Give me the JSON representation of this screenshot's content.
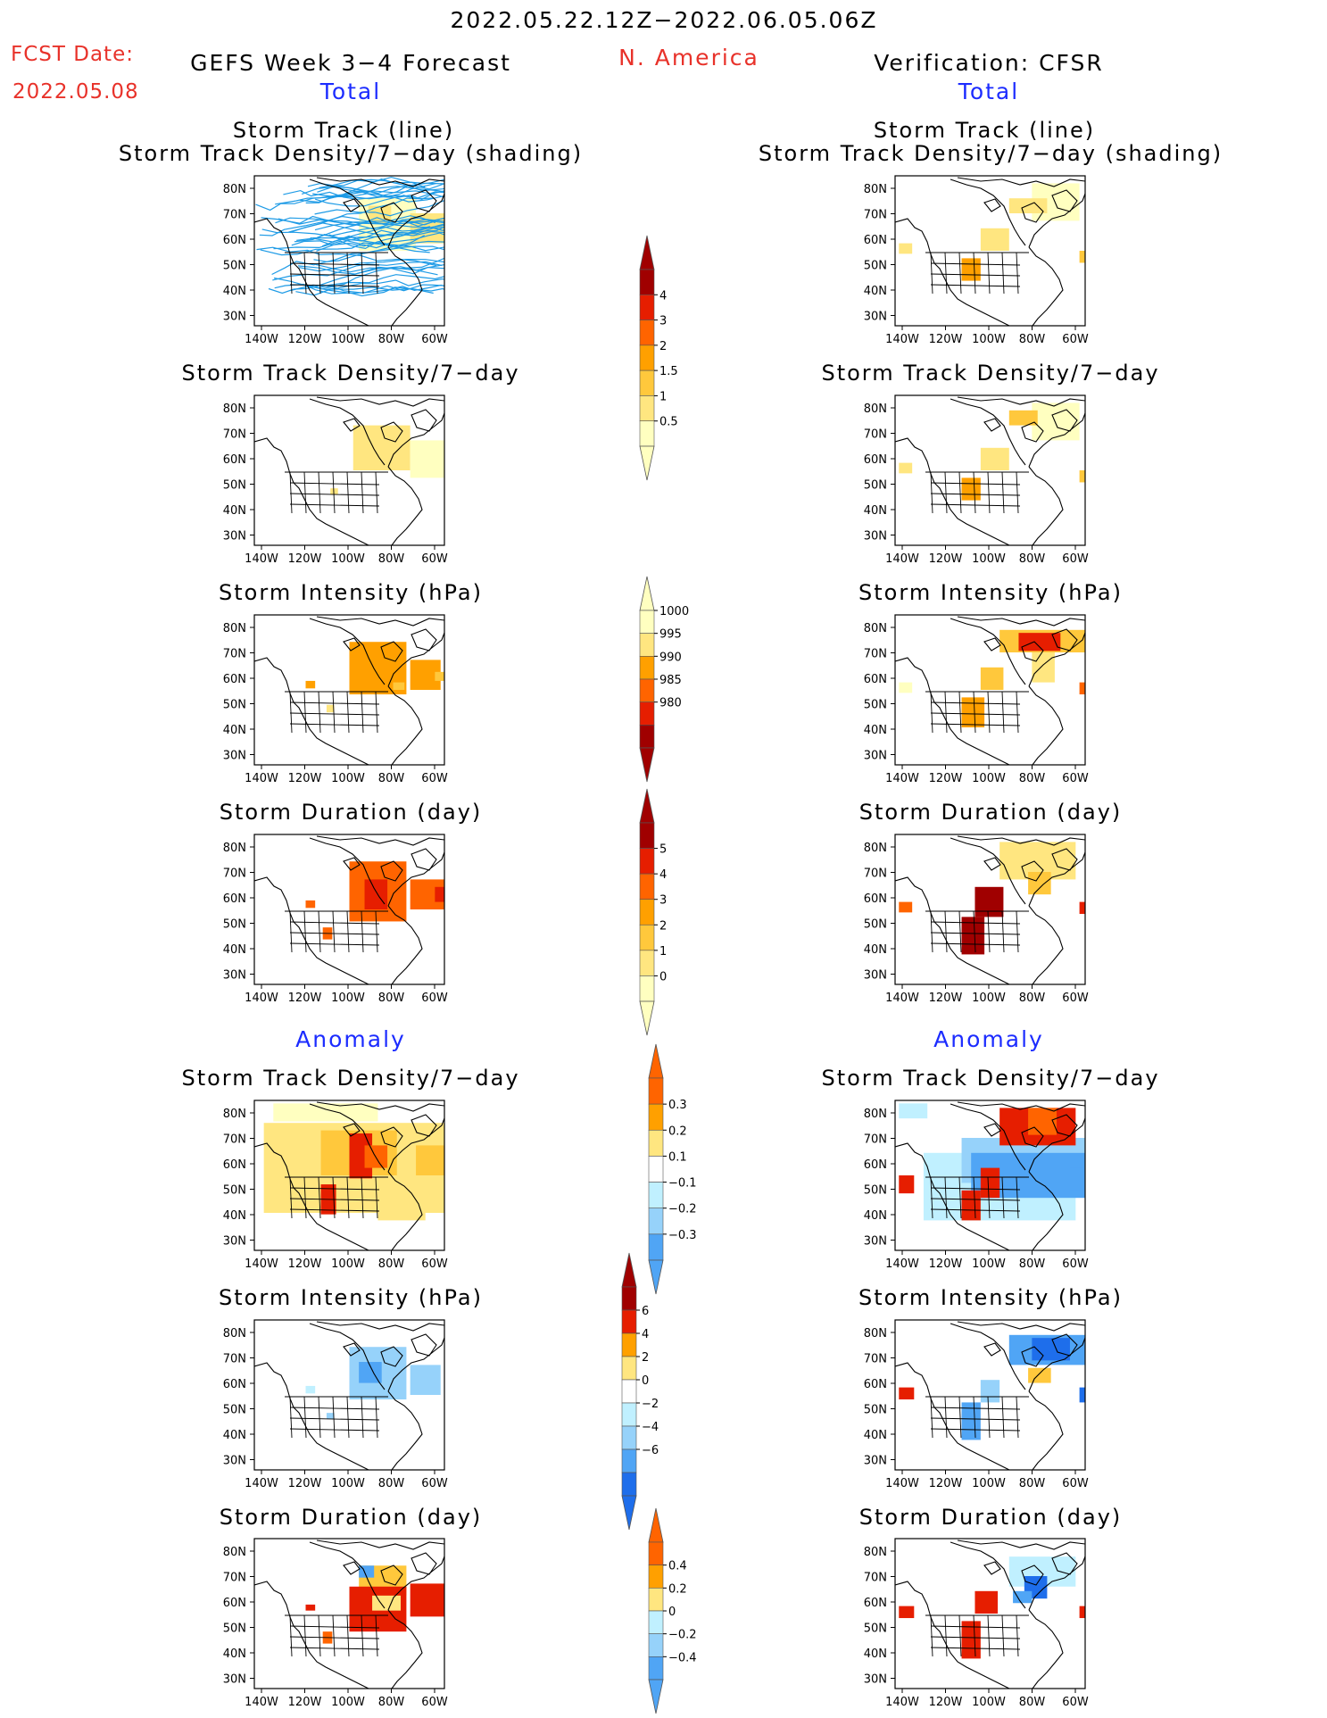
{
  "header": {
    "period": "2022.05.22.12Z−2022.06.05.06Z",
    "fcst_label": "FCST Date:",
    "fcst_date": "2022.05.08",
    "left_title": "GEFS Week 3−4 Forecast",
    "region": "N. America",
    "right_title": "Verification: CFSR",
    "total_label": "Total",
    "anomaly_label": "Anomaly"
  },
  "panel_titles": {
    "track_line": "Storm Track (line)",
    "track_shading": "Storm Track Density/7−day (shading)",
    "density": "Storm Track Density/7−day",
    "intensity": "Storm Intensity (hPa)",
    "duration": "Storm Duration (day)"
  },
  "axes": {
    "lat_ticks": [
      "80N",
      "70N",
      "60N",
      "50N",
      "40N",
      "30N"
    ],
    "lon_ticks": [
      "140W",
      "120W",
      "100W",
      "80W",
      "60W"
    ]
  },
  "colors": {
    "yellow_light": "#ffffc0",
    "yellow": "#ffe680",
    "yellow_orange": "#ffc83c",
    "orange": "#ffa000",
    "orange_red": "#ff6400",
    "red": "#e61e00",
    "dark_red": "#a00000",
    "light_cyan": "#c0f0ff",
    "light_blue": "#96d2fa",
    "blue": "#50a5f5",
    "dark_blue": "#1e6eeb",
    "track_line": "#1e9be6"
  },
  "chart_data": [
    {
      "id": "colorbar-density",
      "type": "colorbar",
      "ticks": [
        "4",
        "3",
        "2",
        "1.5",
        "1",
        "0.5"
      ]
    },
    {
      "id": "colorbar-intensity",
      "type": "colorbar",
      "ticks": [
        "1000",
        "995",
        "990",
        "985",
        "980"
      ]
    },
    {
      "id": "colorbar-duration",
      "type": "colorbar",
      "ticks": [
        "5",
        "4",
        "3",
        "2",
        "1",
        "0"
      ]
    },
    {
      "id": "colorbar-density-anom",
      "type": "colorbar",
      "ticks": [
        "0.3",
        "0.2",
        "0.1",
        "−0.1",
        "−0.2",
        "−0.3"
      ]
    },
    {
      "id": "colorbar-intensity-anom",
      "type": "colorbar",
      "ticks": [
        "6",
        "4",
        "2",
        "0",
        "−2",
        "−4",
        "−6"
      ]
    },
    {
      "id": "colorbar-duration-anom",
      "type": "colorbar",
      "ticks": [
        "0.4",
        "0.2",
        "0",
        "−0.2",
        "−0.4"
      ]
    },
    {
      "id": "map-fcst-track",
      "type": "heatmap",
      "title": "Storm Track (line) / Storm Track Density/7−day (shading)",
      "source": "GEFS Week 3−4 Forecast"
    },
    {
      "id": "map-obs-track",
      "type": "heatmap",
      "title": "Storm Track (line) / Storm Track Density/7−day (shading)",
      "source": "Verification: CFSR"
    }
  ]
}
